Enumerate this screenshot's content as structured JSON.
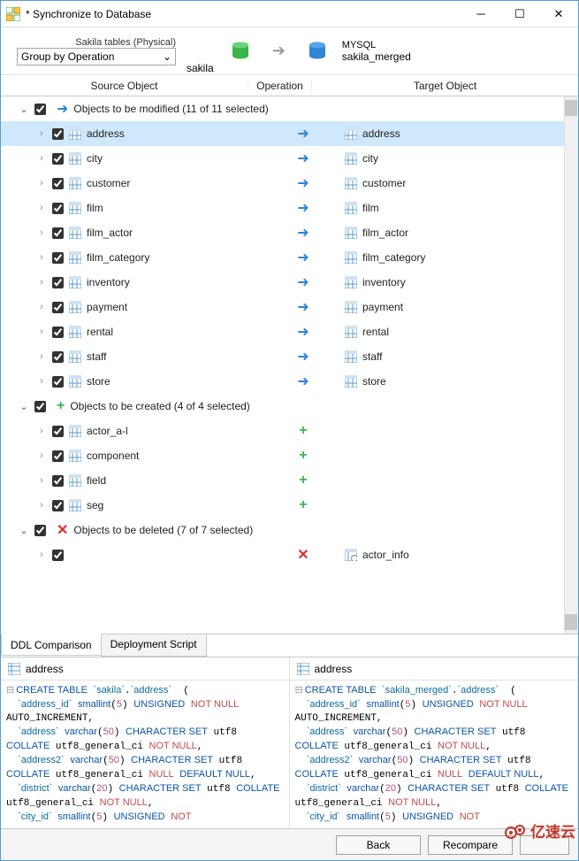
{
  "window": {
    "title": "* Synchronize to Database"
  },
  "flow": {
    "source_label": "Sakila tables (Physical)",
    "combo": "Group by Operation",
    "source_schema": "sakila",
    "target_db_type": "MYSQL",
    "target_schema": "sakila_merged"
  },
  "columns": {
    "source": "Source Object",
    "operation": "Operation",
    "target": "Target Object"
  },
  "groups": {
    "modified": {
      "label": "Objects to be modified (11 of 11 selected)",
      "icon": "modify"
    },
    "created": {
      "label": "Objects to be created (4 of 4 selected)",
      "icon": "create"
    },
    "deleted": {
      "label": "Objects to be deleted (7 of 7 selected)",
      "icon": "delete"
    }
  },
  "modified": [
    {
      "src": "address",
      "tgt": "address",
      "selected": true
    },
    {
      "src": "city",
      "tgt": "city"
    },
    {
      "src": "customer",
      "tgt": "customer"
    },
    {
      "src": "film",
      "tgt": "film"
    },
    {
      "src": "film_actor",
      "tgt": "film_actor"
    },
    {
      "src": "film_category",
      "tgt": "film_category"
    },
    {
      "src": "inventory",
      "tgt": "inventory"
    },
    {
      "src": "payment",
      "tgt": "payment"
    },
    {
      "src": "rental",
      "tgt": "rental"
    },
    {
      "src": "staff",
      "tgt": "staff"
    },
    {
      "src": "store",
      "tgt": "store"
    }
  ],
  "created": [
    {
      "src": "actor_a-l"
    },
    {
      "src": "component"
    },
    {
      "src": "field"
    },
    {
      "src": "seg"
    }
  ],
  "deleted": [
    {
      "tgt": "actor_info",
      "view": true
    }
  ],
  "tabs": {
    "ddl": "DDL Comparison",
    "deploy": "Deployment Script"
  },
  "ddl": {
    "left_title": "address",
    "right_title": "address",
    "left_schema": "sakila",
    "right_schema": "sakila_merged"
  },
  "buttons": {
    "back": "Back",
    "recompare": "Recompare"
  },
  "watermark": "亿速云",
  "colors": {
    "selection": "#cfe8fb",
    "db_source": "#3bb54a",
    "db_target": "#2f84d6",
    "op_modify": "#2f84d6",
    "op_create": "#3bb54a",
    "op_delete": "#e03030"
  }
}
